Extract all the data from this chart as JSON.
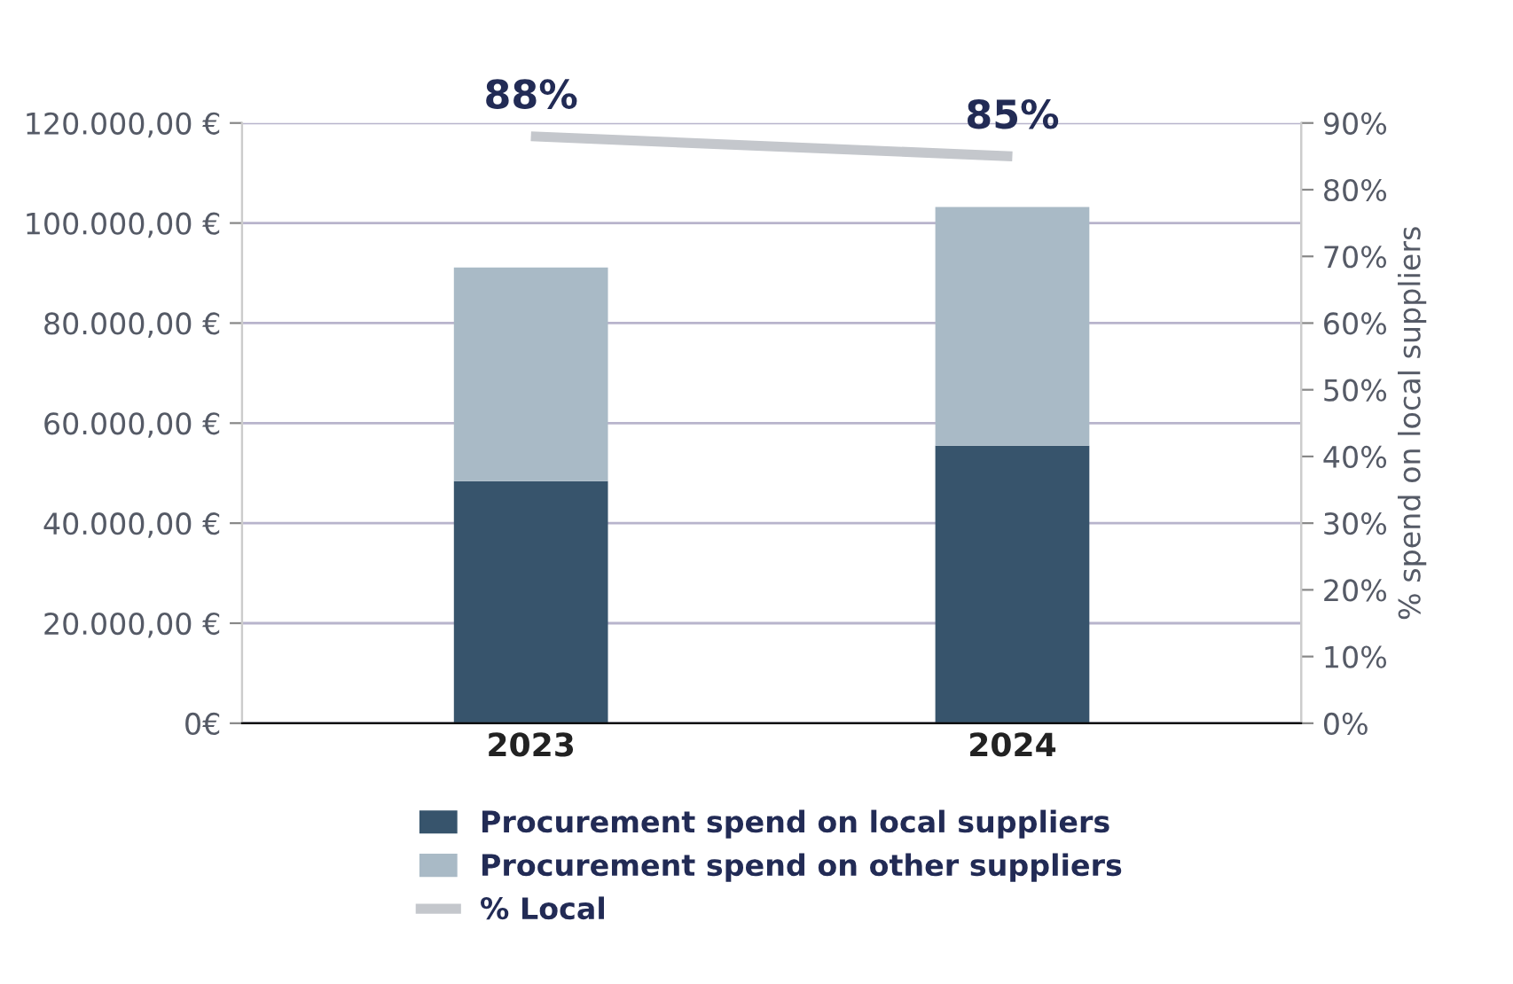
{
  "chart_data": {
    "type": "bar",
    "stacked": true,
    "categories": [
      "2023",
      "2024"
    ],
    "series": [
      {
        "name": "Procurement spend on local suppliers",
        "color": "#37546c",
        "values": [
          48400,
          55500
        ]
      },
      {
        "name": "Procurement spend on other suppliers",
        "color": "#a9bac6",
        "values": [
          42700,
          47700
        ]
      },
      {
        "name": "% Local",
        "type": "line",
        "axis": "y2",
        "color": "#c4c7cc",
        "values": [
          88,
          85
        ],
        "value_labels": [
          "88%",
          "85%"
        ]
      }
    ],
    "ylim": [
      0,
      120000
    ],
    "yticks": [
      {
        "value": 0,
        "label": "0€"
      },
      {
        "value": 20000,
        "label": "20.000,00 €"
      },
      {
        "value": 40000,
        "label": "40.000,00 €"
      },
      {
        "value": 60000,
        "label": "60.000,00 €"
      },
      {
        "value": 80000,
        "label": "80.000,00 €"
      },
      {
        "value": 100000,
        "label": "100.000,00 €"
      },
      {
        "value": 120000,
        "label": "120.000,00 €"
      }
    ],
    "y2lim": [
      0,
      90
    ],
    "y2ticks": [
      {
        "value": 0,
        "label": "0%"
      },
      {
        "value": 10,
        "label": "10%"
      },
      {
        "value": 20,
        "label": "20%"
      },
      {
        "value": 30,
        "label": "30%"
      },
      {
        "value": 40,
        "label": "40%"
      },
      {
        "value": 50,
        "label": "50%"
      },
      {
        "value": 60,
        "label": "60%"
      },
      {
        "value": 70,
        "label": "70%"
      },
      {
        "value": 80,
        "label": "80%"
      },
      {
        "value": 90,
        "label": "90%"
      }
    ],
    "y2label": "% spend on local suppliers",
    "grid": "y",
    "legend": "bottom",
    "marker": "none"
  }
}
